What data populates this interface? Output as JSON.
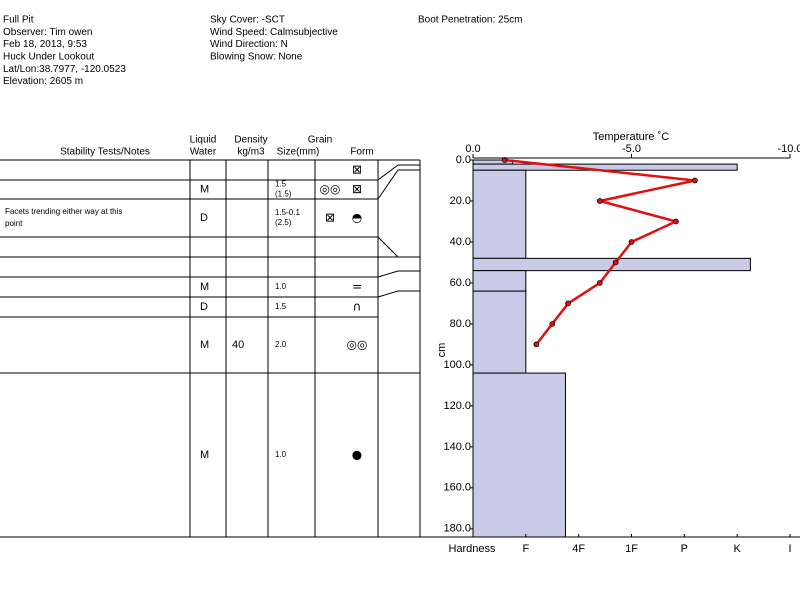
{
  "header": {
    "columns": [
      [
        "Full Pit",
        "Observer: Tim owen",
        "Feb 18, 2013, 9:53",
        "Huck Under Lookout",
        "Lat/Lon:38.7977, -120.0523",
        "Elevation: 2605 m"
      ],
      [
        "Sky Cover: -SCT",
        "Wind Speed: Calmsubjective",
        "Wind Direction: N",
        "Blowing Snow: None"
      ],
      [
        "Boot Penetration: 25cm"
      ]
    ]
  },
  "table": {
    "headers": [
      "Stability Tests/Notes",
      "Liquid",
      "Water",
      "Density",
      "kg/m3",
      "Grain",
      "Size(mm)",
      "Form"
    ],
    "rows": [
      {
        "forms": [
          "⊠"
        ]
      },
      {
        "water": "M",
        "size": [
          "1.5",
          "(1.5)"
        ],
        "forms": [
          "◎◎",
          "⊠"
        ]
      },
      {
        "notes": [
          "Facets trending either way at this",
          "point"
        ],
        "water": "D",
        "size": [
          "1.5-0.1",
          "(2.5)"
        ],
        "forms": [
          "⊠",
          "◓"
        ]
      },
      {},
      {},
      {
        "water": "M",
        "size": [
          "1.0"
        ],
        "forms": [
          "="
        ]
      },
      {
        "water": "D",
        "size": [
          "1.5"
        ],
        "forms": [
          "∩"
        ]
      },
      {
        "water": "M",
        "density": 40,
        "size": [
          "2.0"
        ],
        "forms": [
          "◎◎"
        ]
      },
      {
        "water": "M",
        "size": [
          "1.0"
        ],
        "forms": [
          "●"
        ]
      }
    ]
  },
  "chart_data": [
    {
      "type": "line",
      "title": "Temperature ˚C",
      "color": "#e01010",
      "depth": [
        0,
        10,
        20,
        30,
        40,
        50,
        60,
        70,
        80,
        90
      ],
      "values": [
        -1.0,
        -7.0,
        -4.0,
        -6.4,
        -5.0,
        -4.5,
        -4.0,
        -3.0,
        -2.5,
        -2.0
      ],
      "xlim": [
        0,
        -10
      ],
      "xticks": [
        {
          "value": 0,
          "label": "0.0"
        },
        {
          "value": -5,
          "label": "-5.0"
        },
        {
          "value": -10,
          "label": "-10.0"
        }
      ]
    },
    {
      "type": "bar",
      "x_label": "Hardness",
      "y_label": "cm",
      "color": "#c9c9e8",
      "depth_top": [
        0,
        2,
        5,
        48,
        54,
        64,
        104
      ],
      "depth_bottom": [
        2,
        5,
        48,
        54,
        64,
        104,
        184
      ],
      "values": [
        0.75,
        5,
        1,
        5.25,
        1,
        1,
        1.75
      ],
      "xlim": [
        0,
        6
      ],
      "xticks": [
        {
          "value": 1,
          "label": "F"
        },
        {
          "value": 2,
          "label": "4F"
        },
        {
          "value": 3,
          "label": "1F"
        },
        {
          "value": 4,
          "label": "P"
        },
        {
          "value": 5,
          "label": "K"
        },
        {
          "value": 6,
          "label": "I"
        }
      ],
      "ylim": [
        0,
        184
      ],
      "yticks": [
        {
          "value": 0,
          "label": "0.0"
        },
        {
          "value": 20,
          "label": "20.0"
        },
        {
          "value": 40,
          "label": "40.0"
        },
        {
          "value": 60,
          "label": "60.0"
        },
        {
          "value": 80,
          "label": "80.0"
        },
        {
          "value": 100,
          "label": "100.0"
        },
        {
          "value": 120,
          "label": "120.0"
        },
        {
          "value": 140,
          "label": "140.0"
        },
        {
          "value": 160,
          "label": "160.0"
        },
        {
          "value": 180,
          "label": "180.0"
        }
      ]
    }
  ]
}
